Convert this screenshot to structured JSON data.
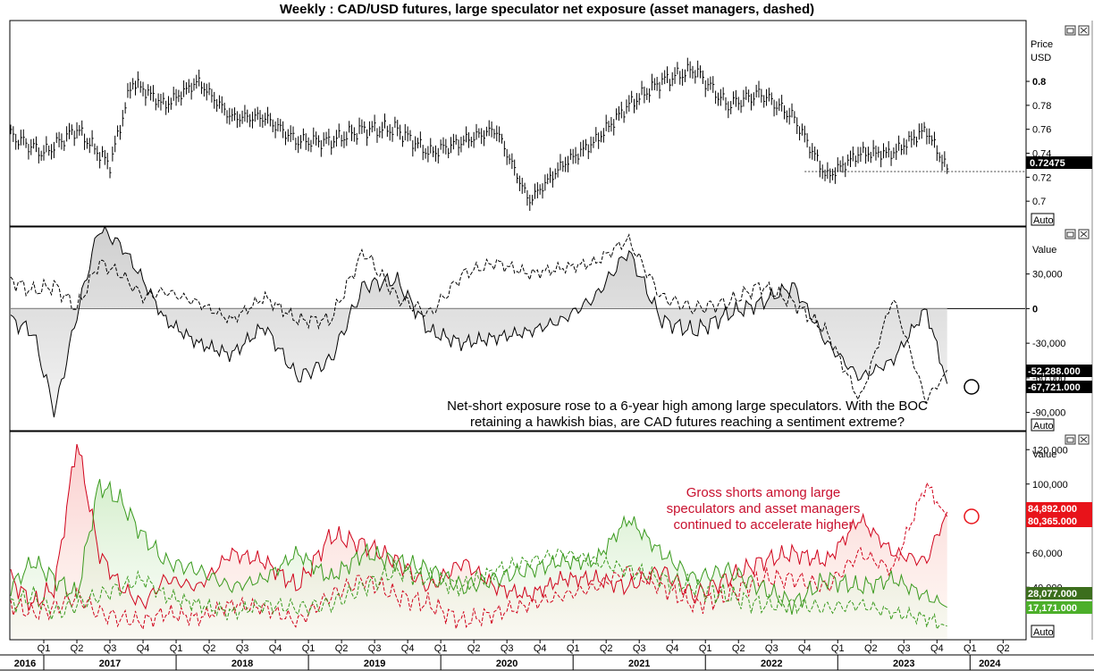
{
  "title": "Weekly : CAD/USD futures, large speculator net exposure (asset managers, dashed)",
  "panels": {
    "price": {
      "axis_title_1": "Price",
      "axis_title_2": "USD",
      "auto_label": "Auto",
      "last_value_label": "0.72475"
    },
    "net": {
      "axis_title": "Value",
      "auto_label": "Auto",
      "badge_1": "-52,288.000",
      "badge_2": "-67,721.000",
      "annotation_lines": [
        "Net-short exposure rose to a 6-year high among large speculators. With the BOC",
        "retaining a hawkish bias, are CAD futures reaching a sentiment extreme?"
      ]
    },
    "gross": {
      "axis_title": "Value",
      "auto_label": "Auto",
      "badge_1": "84,892.000",
      "badge_2": "80,365.000",
      "badge_3": "28,077.000",
      "badge_4": "17,171.000",
      "annotation_lines": [
        "Gross shorts among large",
        "speculators and asset managers",
        "continued to accelerate higher"
      ]
    }
  },
  "time_axis": {
    "quarters": [
      "Q1",
      "Q2",
      "Q3",
      "Q4",
      "Q1",
      "Q2",
      "Q3",
      "Q4",
      "Q1",
      "Q2",
      "Q3",
      "Q4",
      "Q1",
      "Q2",
      "Q3",
      "Q4",
      "Q1",
      "Q2",
      "Q3",
      "Q4",
      "Q1",
      "Q2",
      "Q3",
      "Q4",
      "Q1",
      "Q2",
      "Q3",
      "Q4",
      "Q1",
      "Q2"
    ],
    "years": [
      "2016",
      "2017",
      "2018",
      "2019",
      "2020",
      "2021",
      "2022",
      "2023",
      "2024"
    ]
  },
  "colors": {
    "short_red": "#d0021b",
    "long_green": "#3a9a1e",
    "badge_black": "#000000",
    "badge_red": "#e8131a",
    "badge_green_dark": "#3c6e1d",
    "badge_green": "#4caf2a",
    "annotation_red": "#c8102e"
  },
  "chart_data": [
    {
      "type": "line",
      "title": "Weekly : CAD/USD futures, large speculator net exposure (asset managers, dashed)",
      "xlabel": "",
      "ylabel": "Price USD",
      "x_range": [
        "2016-10",
        "2024-06"
      ],
      "ylim": [
        0.68,
        0.85
      ],
      "y_ticks": [
        0.7,
        0.72,
        0.74,
        0.76,
        0.78,
        0.8
      ],
      "x": [
        "2016-10",
        "2017-01",
        "2017-04",
        "2017-07",
        "2017-09",
        "2017-12",
        "2018-03",
        "2018-06",
        "2018-09",
        "2018-12",
        "2019-03",
        "2019-06",
        "2019-09",
        "2019-12",
        "2020-03",
        "2020-06",
        "2020-09",
        "2020-12",
        "2021-03",
        "2021-06",
        "2021-09",
        "2021-12",
        "2022-03",
        "2022-06",
        "2022-09",
        "2022-12",
        "2023-03",
        "2023-06",
        "2023-09",
        "2023-11"
      ],
      "series": [
        {
          "values": [
            0.755,
            0.74,
            0.76,
            0.73,
            0.8,
            0.78,
            0.8,
            0.77,
            0.77,
            0.75,
            0.75,
            0.76,
            0.76,
            0.74,
            0.75,
            0.76,
            0.7,
            0.73,
            0.75,
            0.78,
            0.8,
            0.81,
            0.78,
            0.79,
            0.77,
            0.72,
            0.74,
            0.74,
            0.76,
            0.725
          ]
        }
      ],
      "last_value": 0.72475
    },
    {
      "type": "area",
      "xlabel": "",
      "ylabel": "Value",
      "ylim": [
        -105000,
        70000
      ],
      "y_ticks": [
        -90000,
        -60000,
        -30000,
        0,
        30000
      ],
      "x": [
        "2016-10",
        "2016-12",
        "2017-02",
        "2017-04",
        "2017-06",
        "2017-08",
        "2017-10",
        "2017-12",
        "2018-03",
        "2018-06",
        "2018-09",
        "2018-12",
        "2019-03",
        "2019-06",
        "2019-09",
        "2019-12",
        "2020-03",
        "2020-06",
        "2020-09",
        "2020-12",
        "2021-03",
        "2021-06",
        "2021-09",
        "2021-12",
        "2022-03",
        "2022-06",
        "2022-09",
        "2022-12",
        "2023-03",
        "2023-06",
        "2023-09",
        "2023-11"
      ],
      "series": [
        {
          "values": [
            -10000,
            -20000,
            -90000,
            -5000,
            70000,
            55000,
            25000,
            -10000,
            -30000,
            -40000,
            -15000,
            -60000,
            -45000,
            20000,
            25000,
            -20000,
            -30000,
            -25000,
            -20000,
            -10000,
            10000,
            50000,
            -10000,
            -20000,
            -5000,
            5000,
            20000,
            -30000,
            -60000,
            -45000,
            0,
            -67721
          ]
        },
        {
          "values": [
            25000,
            15000,
            20000,
            0,
            40000,
            30000,
            10000,
            15000,
            5000,
            -10000,
            10000,
            -10000,
            -10000,
            50000,
            10000,
            -5000,
            30000,
            40000,
            30000,
            35000,
            40000,
            60000,
            10000,
            0,
            5000,
            20000,
            5000,
            -20000,
            -80000,
            10000,
            -80000,
            -52288
          ]
        }
      ],
      "last_values": [
        -52288,
        -67721
      ]
    },
    {
      "type": "line",
      "xlabel": "",
      "ylabel": "Value",
      "ylim": [
        10000,
        130000
      ],
      "y_ticks": [
        40000,
        60000,
        80000,
        100000,
        120000
      ],
      "x": [
        "2016-10",
        "2016-12",
        "2017-02",
        "2017-04",
        "2017-06",
        "2017-08",
        "2017-10",
        "2017-12",
        "2018-03",
        "2018-06",
        "2018-09",
        "2018-12",
        "2019-03",
        "2019-06",
        "2019-09",
        "2019-12",
        "2020-03",
        "2020-06",
        "2020-09",
        "2020-12",
        "2021-03",
        "2021-06",
        "2021-09",
        "2021-12",
        "2022-03",
        "2022-06",
        "2022-09",
        "2022-12",
        "2023-03",
        "2023-06",
        "2023-09",
        "2023-11"
      ],
      "series": [
        {
          "values": [
            45000,
            30000,
            40000,
            125000,
            60000,
            40000,
            30000,
            45000,
            40000,
            60000,
            55000,
            40000,
            70000,
            65000,
            55000,
            40000,
            55000,
            40000,
            35000,
            45000,
            45000,
            40000,
            50000,
            35000,
            45000,
            55000,
            60000,
            55000,
            80000,
            60000,
            55000,
            84892
          ]
        },
        {
          "values": [
            30000,
            25000,
            28000,
            35000,
            25000,
            22000,
            20000,
            25000,
            22000,
            30000,
            28000,
            20000,
            35000,
            45000,
            35000,
            30000,
            20000,
            25000,
            30000,
            35000,
            40000,
            50000,
            40000,
            30000,
            35000,
            45000,
            45000,
            40000,
            60000,
            50000,
            100000,
            80365
          ]
        },
        {
          "values": [
            40000,
            55000,
            45000,
            35000,
            100000,
            90000,
            70000,
            55000,
            50000,
            40000,
            45000,
            60000,
            45000,
            60000,
            55000,
            50000,
            40000,
            45000,
            50000,
            55000,
            55000,
            80000,
            60000,
            45000,
            50000,
            40000,
            30000,
            45000,
            40000,
            45000,
            35000,
            28077
          ]
        },
        {
          "values": [
            30000,
            35000,
            25000,
            30000,
            35000,
            40000,
            45000,
            35000,
            30000,
            25000,
            30000,
            28000,
            30000,
            40000,
            50000,
            45000,
            40000,
            50000,
            55000,
            60000,
            55000,
            50000,
            45000,
            40000,
            35000,
            30000,
            30000,
            28000,
            30000,
            25000,
            22000,
            17171
          ]
        }
      ],
      "last_values": [
        84892,
        80365,
        28077,
        17171
      ]
    }
  ]
}
